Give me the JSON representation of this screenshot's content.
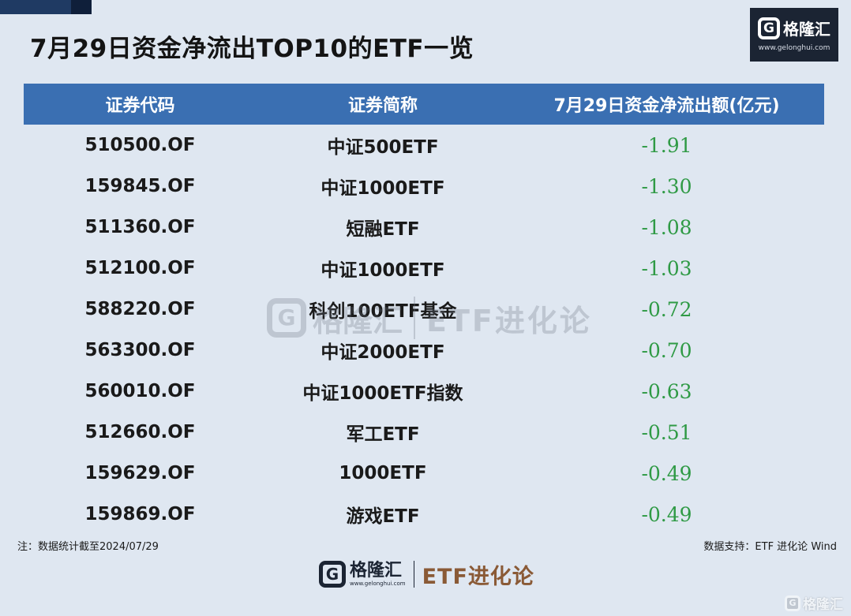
{
  "title": "7月29日资金净流出TOP10的ETF一览",
  "logo": {
    "mark": "G",
    "name": "格隆汇",
    "url": "www.gelonghui.com"
  },
  "table": {
    "headers": [
      "证券代码",
      "证券简称",
      "7月29日资金净流出额(亿元)"
    ],
    "rows": [
      {
        "code": "510500.OF",
        "name": "中证500ETF",
        "value": "-1.91"
      },
      {
        "code": "159845.OF",
        "name": "中证1000ETF",
        "value": "-1.30"
      },
      {
        "code": "511360.OF",
        "name": "短融ETF",
        "value": "-1.08"
      },
      {
        "code": "512100.OF",
        "name": "中证1000ETF",
        "value": "-1.03"
      },
      {
        "code": "588220.OF",
        "name": "科创100ETF基金",
        "value": "-0.72"
      },
      {
        "code": "563300.OF",
        "name": "中证2000ETF",
        "value": "-0.70"
      },
      {
        "code": "560010.OF",
        "name": "中证1000ETF指数",
        "value": "-0.63"
      },
      {
        "code": "512660.OF",
        "name": "军工ETF",
        "value": "-0.51"
      },
      {
        "code": "159629.OF",
        "name": "1000ETF",
        "value": "-0.49"
      },
      {
        "code": "159869.OF",
        "name": "游戏ETF",
        "value": "-0.49"
      }
    ]
  },
  "watermark": {
    "mark": "G",
    "name": "格隆汇",
    "partner": "ETF进化论"
  },
  "note": "注：数据统计截至2024/07/29",
  "source": "数据支持：ETF 进化论 Wind",
  "footer": {
    "mark": "G",
    "name": "格隆汇",
    "url": "www.gelonghui.com",
    "partner": "ETF进化论"
  },
  "corner_watermark": {
    "mark": "G",
    "name": "格隆汇"
  },
  "colors": {
    "header_bg": "#3a6fb2",
    "value_green": "#2f9a45",
    "logo_bg": "#1b2433",
    "partner_brown": "#8a5a36"
  }
}
